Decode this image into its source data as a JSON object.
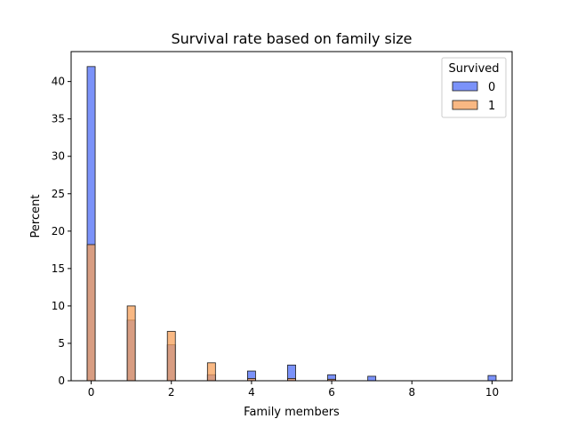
{
  "chart_data": {
    "type": "bar",
    "title": "Survival rate based on family size",
    "xlabel": "Family members",
    "ylabel": "Percent",
    "xlim": [
      -0.5,
      10.5
    ],
    "ylim": [
      0,
      44
    ],
    "x_ticks": [
      0,
      2,
      4,
      6,
      8,
      10
    ],
    "y_ticks": [
      0,
      5,
      10,
      15,
      20,
      25,
      30,
      35,
      40
    ],
    "bin_width": 0.2,
    "legend": {
      "title": "Survived",
      "placement": "top-right"
    },
    "series": [
      {
        "name": "0",
        "color": "#4f6ef7",
        "x": [
          0,
          1,
          2,
          3,
          4,
          5,
          6,
          7,
          10
        ],
        "values": [
          42.0,
          8.1,
          4.8,
          0.8,
          1.3,
          2.1,
          0.8,
          0.6,
          0.7
        ]
      },
      {
        "name": "1",
        "color": "#f7a05a",
        "x": [
          0,
          1,
          2,
          3,
          4,
          5,
          6
        ],
        "values": [
          18.2,
          10.0,
          6.6,
          2.4,
          0.3,
          0.3,
          0.2
        ]
      }
    ]
  }
}
